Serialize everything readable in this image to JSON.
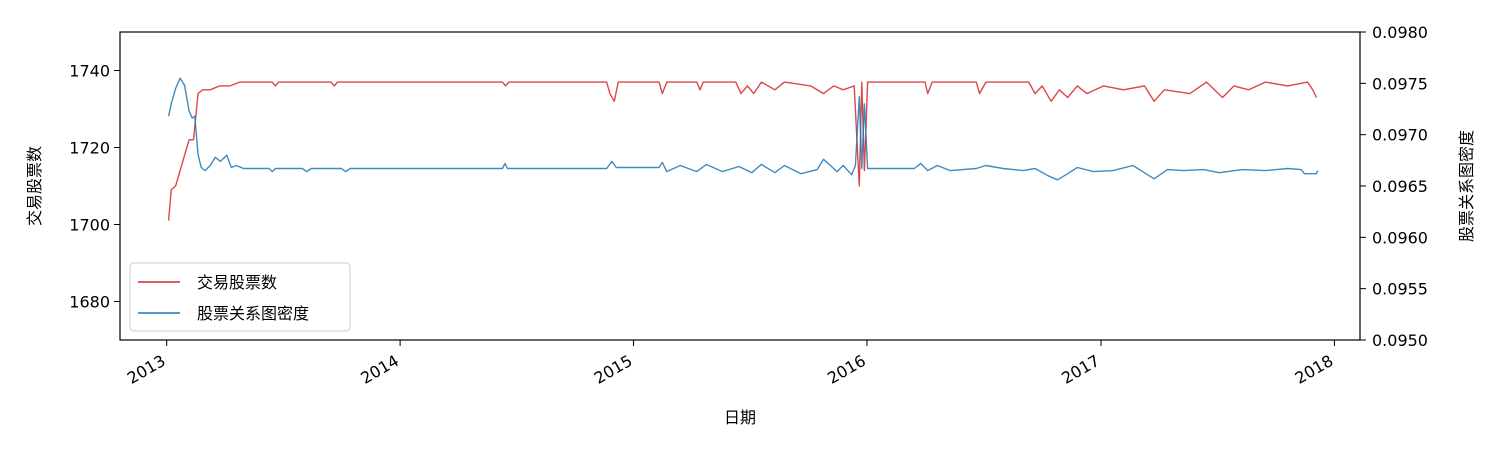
{
  "chart_data": {
    "type": "line",
    "xlabel": "日期",
    "ylabel_left": "交易股票数",
    "ylabel_right": "股票关系图密度",
    "xlim": [
      "2012-10-20",
      "2018-02-10"
    ],
    "ylim_left": [
      1670,
      1750
    ],
    "ylim_right": [
      0.095,
      0.098
    ],
    "x_ticks": [
      "2013",
      "2014",
      "2015",
      "2016",
      "2017",
      "2018"
    ],
    "y_ticks_left": [
      "1680",
      "1700",
      "1720",
      "1740"
    ],
    "y_ticks_right": [
      "0.0950",
      "0.0955",
      "0.0960",
      "0.0965",
      "0.0970",
      "0.0975",
      "0.0980"
    ],
    "legend": {
      "position": "lower-left"
    },
    "series": [
      {
        "name": "交易股票数",
        "axis": "left",
        "color": "#d62728",
        "points": [
          [
            "2013-01-04",
            1701
          ],
          [
            "2013-01-08",
            1709
          ],
          [
            "2013-01-15",
            1710
          ],
          [
            "2013-01-22",
            1714
          ],
          [
            "2013-01-29",
            1718
          ],
          [
            "2013-02-05",
            1722
          ],
          [
            "2013-02-12",
            1722
          ],
          [
            "2013-02-19",
            1734
          ],
          [
            "2013-02-26",
            1735
          ],
          [
            "2013-03-10",
            1735
          ],
          [
            "2013-03-25",
            1736
          ],
          [
            "2013-04-10",
            1736
          ],
          [
            "2013-04-25",
            1737
          ],
          [
            "2013-06-15",
            1737
          ],
          [
            "2013-06-20",
            1736
          ],
          [
            "2013-06-25",
            1737
          ],
          [
            "2013-09-15",
            1737
          ],
          [
            "2013-09-20",
            1736
          ],
          [
            "2013-09-25",
            1737
          ],
          [
            "2014-06-10",
            1737
          ],
          [
            "2014-06-15",
            1736
          ],
          [
            "2014-06-20",
            1737
          ],
          [
            "2014-11-20",
            1737
          ],
          [
            "2014-11-25",
            1734
          ],
          [
            "2014-12-02",
            1732
          ],
          [
            "2014-12-08",
            1737
          ],
          [
            "2015-02-10",
            1737
          ],
          [
            "2015-02-15",
            1734
          ],
          [
            "2015-02-22",
            1737
          ],
          [
            "2015-04-10",
            1737
          ],
          [
            "2015-04-15",
            1735
          ],
          [
            "2015-04-20",
            1737
          ],
          [
            "2015-06-10",
            1737
          ],
          [
            "2015-06-18",
            1734
          ],
          [
            "2015-06-28",
            1736
          ],
          [
            "2015-07-08",
            1734
          ],
          [
            "2015-07-20",
            1737
          ],
          [
            "2015-08-10",
            1735
          ],
          [
            "2015-08-25",
            1737
          ],
          [
            "2015-10-05",
            1736
          ],
          [
            "2015-10-25",
            1734
          ],
          [
            "2015-11-10",
            1736
          ],
          [
            "2015-11-25",
            1735
          ],
          [
            "2015-12-12",
            1736
          ],
          [
            "2015-12-20",
            1710
          ],
          [
            "2015-12-24",
            1737
          ],
          [
            "2015-12-28",
            1714
          ],
          [
            "2016-01-02",
            1737
          ],
          [
            "2016-04-01",
            1737
          ],
          [
            "2016-04-05",
            1734
          ],
          [
            "2016-04-12",
            1737
          ],
          [
            "2016-06-20",
            1737
          ],
          [
            "2016-06-25",
            1734
          ],
          [
            "2016-07-05",
            1737
          ],
          [
            "2016-09-10",
            1737
          ],
          [
            "2016-09-20",
            1734
          ],
          [
            "2016-10-01",
            1736
          ],
          [
            "2016-10-15",
            1732
          ],
          [
            "2016-10-28",
            1735
          ],
          [
            "2016-11-10",
            1733
          ],
          [
            "2016-11-25",
            1736
          ],
          [
            "2016-12-10",
            1734
          ],
          [
            "2017-01-05",
            1736
          ],
          [
            "2017-02-05",
            1735
          ],
          [
            "2017-03-10",
            1736
          ],
          [
            "2017-03-25",
            1732
          ],
          [
            "2017-04-10",
            1735
          ],
          [
            "2017-05-20",
            1734
          ],
          [
            "2017-06-15",
            1737
          ],
          [
            "2017-07-10",
            1733
          ],
          [
            "2017-07-28",
            1736
          ],
          [
            "2017-08-20",
            1735
          ],
          [
            "2017-09-15",
            1737
          ],
          [
            "2017-10-20",
            1736
          ],
          [
            "2017-11-20",
            1737
          ],
          [
            "2017-11-28",
            1735
          ],
          [
            "2017-12-04",
            1733
          ]
        ]
      },
      {
        "name": "股票关系图密度",
        "axis": "right",
        "color": "#1f77b4",
        "points": [
          [
            "2013-01-04",
            0.09718
          ],
          [
            "2013-01-08",
            0.0973
          ],
          [
            "2013-01-15",
            0.09745
          ],
          [
            "2013-01-22",
            0.09755
          ],
          [
            "2013-01-29",
            0.09748
          ],
          [
            "2013-02-05",
            0.09723
          ],
          [
            "2013-02-10",
            0.09716
          ],
          [
            "2013-02-14",
            0.09718
          ],
          [
            "2013-02-19",
            0.09681
          ],
          [
            "2013-02-24",
            0.09668
          ],
          [
            "2013-03-02",
            0.09665
          ],
          [
            "2013-03-10",
            0.0967
          ],
          [
            "2013-03-18",
            0.09678
          ],
          [
            "2013-03-26",
            0.09674
          ],
          [
            "2013-04-05",
            0.0968
          ],
          [
            "2013-04-12",
            0.09668
          ],
          [
            "2013-04-20",
            0.0967
          ],
          [
            "2013-05-01",
            0.09667
          ],
          [
            "2013-06-10",
            0.09667
          ],
          [
            "2013-06-15",
            0.09664
          ],
          [
            "2013-06-20",
            0.09667
          ],
          [
            "2013-08-01",
            0.09667
          ],
          [
            "2013-08-08",
            0.09664
          ],
          [
            "2013-08-15",
            0.09667
          ],
          [
            "2013-10-01",
            0.09667
          ],
          [
            "2013-10-08",
            0.09664
          ],
          [
            "2013-10-15",
            0.09667
          ],
          [
            "2014-06-10",
            0.09667
          ],
          [
            "2014-06-14",
            0.09672
          ],
          [
            "2014-06-18",
            0.09667
          ],
          [
            "2014-11-20",
            0.09667
          ],
          [
            "2014-11-28",
            0.09674
          ],
          [
            "2014-12-05",
            0.09668
          ],
          [
            "2015-02-10",
            0.09668
          ],
          [
            "2015-02-15",
            0.09673
          ],
          [
            "2015-02-22",
            0.09664
          ],
          [
            "2015-03-15",
            0.0967
          ],
          [
            "2015-04-10",
            0.09664
          ],
          [
            "2015-04-25",
            0.09671
          ],
          [
            "2015-05-20",
            0.09664
          ],
          [
            "2015-06-15",
            0.09669
          ],
          [
            "2015-07-05",
            0.09663
          ],
          [
            "2015-07-20",
            0.09671
          ],
          [
            "2015-08-10",
            0.09663
          ],
          [
            "2015-08-25",
            0.0967
          ],
          [
            "2015-09-20",
            0.09662
          ],
          [
            "2015-10-15",
            0.09666
          ],
          [
            "2015-10-25",
            0.09676
          ],
          [
            "2015-11-05",
            0.0967
          ],
          [
            "2015-11-15",
            0.09664
          ],
          [
            "2015-11-25",
            0.0967
          ],
          [
            "2015-12-08",
            0.09661
          ],
          [
            "2015-12-14",
            0.0967
          ],
          [
            "2015-12-20",
            0.09737
          ],
          [
            "2015-12-24",
            0.09667
          ],
          [
            "2015-12-28",
            0.0973
          ],
          [
            "2016-01-02",
            0.09667
          ],
          [
            "2016-03-15",
            0.09667
          ],
          [
            "2016-03-25",
            0.09672
          ],
          [
            "2016-04-05",
            0.09665
          ],
          [
            "2016-04-20",
            0.0967
          ],
          [
            "2016-05-10",
            0.09665
          ],
          [
            "2016-06-20",
            0.09667
          ],
          [
            "2016-07-05",
            0.0967
          ],
          [
            "2016-08-01",
            0.09667
          ],
          [
            "2016-09-01",
            0.09665
          ],
          [
            "2016-09-20",
            0.09667
          ],
          [
            "2016-10-10",
            0.0966
          ],
          [
            "2016-10-25",
            0.09656
          ],
          [
            "2016-11-10",
            0.09662
          ],
          [
            "2016-11-25",
            0.09668
          ],
          [
            "2016-12-20",
            0.09664
          ],
          [
            "2017-01-20",
            0.09665
          ],
          [
            "2017-02-20",
            0.0967
          ],
          [
            "2017-03-25",
            0.09657
          ],
          [
            "2017-04-15",
            0.09666
          ],
          [
            "2017-05-10",
            0.09665
          ],
          [
            "2017-06-10",
            0.09666
          ],
          [
            "2017-07-05",
            0.09663
          ],
          [
            "2017-08-10",
            0.09666
          ],
          [
            "2017-09-15",
            0.09665
          ],
          [
            "2017-10-20",
            0.09667
          ],
          [
            "2017-11-10",
            0.09666
          ],
          [
            "2017-11-15",
            0.09662
          ],
          [
            "2017-12-04",
            0.09662
          ],
          [
            "2017-12-06",
            0.09665
          ]
        ]
      }
    ]
  }
}
